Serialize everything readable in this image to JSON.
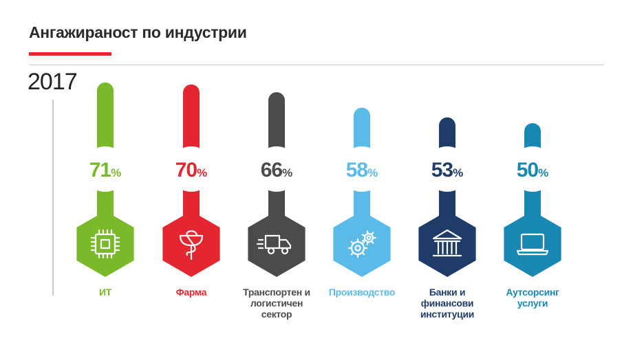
{
  "title": "Ангажираност по индустрии",
  "year": "2017",
  "colors": {
    "accent_red": "#e3262f",
    "rule_gray": "#c9c9c9"
  },
  "chart_data": {
    "type": "bar",
    "title": "Ангажираност по индустрии",
    "subtitle": "2017",
    "categories": [
      "ИТ",
      "Фарма",
      "Транспортен и\nлогистичен\nсектор",
      "Производство",
      "Банки и\nфинансови\nинституции",
      "Аутсорсинг\nуслуги"
    ],
    "values": [
      71,
      70,
      66,
      58,
      53,
      50
    ],
    "unit": "%",
    "ylim": [
      0,
      100
    ],
    "colors": [
      "#7ab929",
      "#e3262f",
      "#4b4b4d",
      "#5bbbe8",
      "#1f3b68",
      "#1888b3"
    ],
    "icons": [
      "chip-icon",
      "caduceus-icon",
      "truck-icon",
      "gears-icon",
      "bank-icon",
      "laptop-icon"
    ],
    "grid": false,
    "legend": "none"
  }
}
